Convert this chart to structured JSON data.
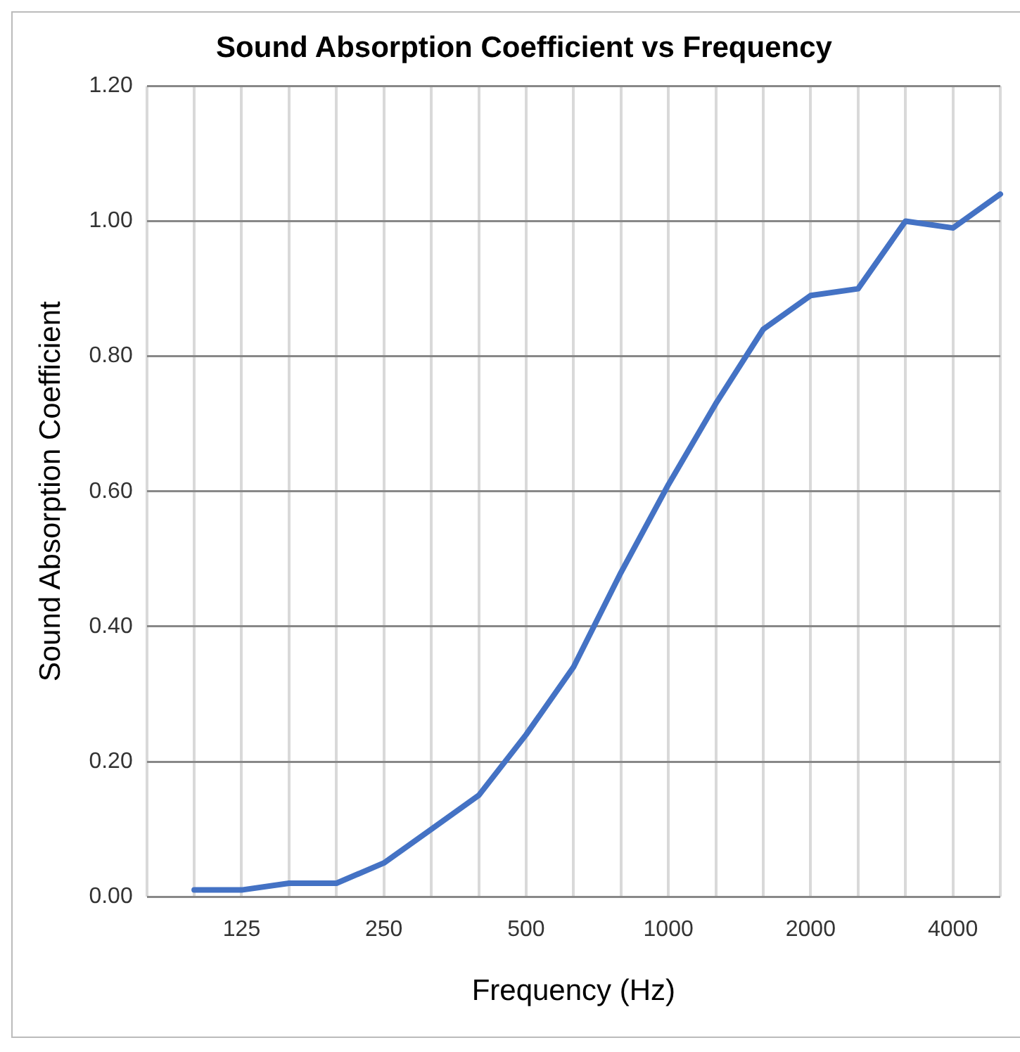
{
  "chart_data": {
    "type": "line",
    "title": "Sound Absorption Coefficient vs Frequency",
    "xlabel": "Frequency (Hz)",
    "ylabel": "Sound Absorption Coefficient",
    "categories": [
      null,
      null,
      "125",
      null,
      null,
      "250",
      null,
      null,
      "500",
      null,
      null,
      "1000",
      null,
      null,
      "2000",
      null,
      null,
      "4000",
      null
    ],
    "series": [
      {
        "color": "#4472c4",
        "values": [
          null,
          0.01,
          0.01,
          0.02,
          0.02,
          0.05,
          0.1,
          0.15,
          0.24,
          0.34,
          0.48,
          0.61,
          0.73,
          0.84,
          0.89,
          0.9,
          1.0,
          0.99,
          1.04
        ]
      }
    ],
    "ylim": [
      0,
      1.2
    ],
    "yticks": [
      {
        "value": 0,
        "label": "0.00"
      },
      {
        "value": 0.2,
        "label": "0.20"
      },
      {
        "value": 0.4,
        "label": "0.40"
      },
      {
        "value": 0.6,
        "label": "0.60"
      },
      {
        "value": 0.8,
        "label": "0.80"
      },
      {
        "value": 1,
        "label": "1.00"
      },
      {
        "value": 1.2,
        "label": "1.20"
      }
    ],
    "grid": true,
    "legend": false,
    "marker": "none",
    "line_style": "solid"
  }
}
